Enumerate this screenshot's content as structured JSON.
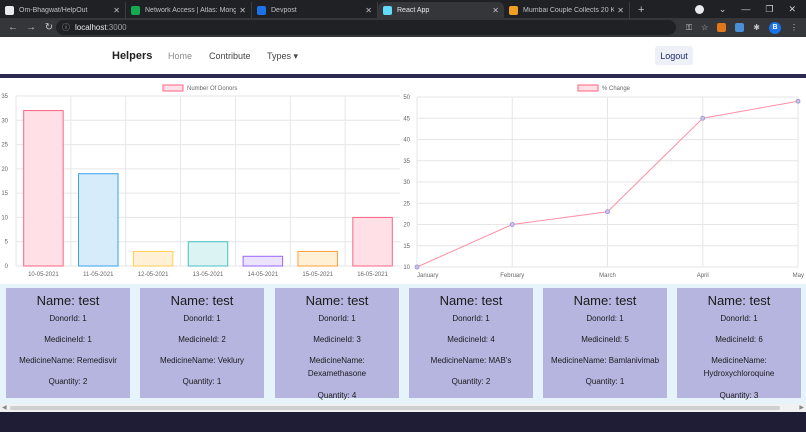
{
  "browser": {
    "tabs": [
      {
        "title": "Om-Bhagwat/HelpOut",
        "favicon_color": "#e8eaed",
        "active": false
      },
      {
        "title": "Network Access | Atlas: MongoD",
        "favicon_color": "#13aa52",
        "active": false
      },
      {
        "title": "Devpost",
        "favicon_color": "#1a73e8",
        "active": false
      },
      {
        "title": "React App",
        "favicon_color": "#61dafb",
        "active": true
      },
      {
        "title": "Mumbai Couple Collects 20 Kg C",
        "favicon_color": "#f0a020",
        "active": false
      }
    ],
    "new_tab": "+",
    "address": {
      "host": "localhost",
      "port": ":3000"
    },
    "profile_initial": "B"
  },
  "navbar": {
    "brand": "Helpers",
    "links": [
      "Home",
      "Contribute",
      "Types ▾"
    ],
    "logout": "Logout"
  },
  "colors": {
    "divider": "#2b2952",
    "card_bg": "#b5b5e0",
    "cards_area": "#e6f3fb"
  },
  "chart_data": [
    {
      "type": "bar",
      "legend": "Number Of Donors",
      "categories": [
        "10-05-2021",
        "11-05-2021",
        "12-05-2021",
        "13-05-2021",
        "14-05-2021",
        "15-05-2021",
        "16-05-2021"
      ],
      "values": [
        32,
        19,
        3,
        5,
        2,
        3,
        10
      ],
      "fills": [
        "#ffe0e6",
        "#d7ecfb",
        "#fff0d6",
        "#dcf3f3",
        "#ebe3ff",
        "#fff0d6",
        "#ffe0e6"
      ],
      "strokes": [
        "#ff6384",
        "#36a2eb",
        "#ffce56",
        "#4bc0c0",
        "#9966ff",
        "#ff9f40",
        "#ff6384"
      ],
      "ylim": [
        0,
        35
      ],
      "yticks": [
        0,
        5,
        10,
        15,
        20,
        25,
        30,
        35
      ],
      "grid": true,
      "legend_position": "top"
    },
    {
      "type": "line",
      "legend": "% Change",
      "x": [
        "January",
        "February",
        "March",
        "April",
        "May"
      ],
      "values": [
        10,
        20,
        23,
        45,
        49
      ],
      "color": "#ff8fa6",
      "ylim": [
        10,
        50
      ],
      "yticks": [
        10,
        15,
        20,
        25,
        30,
        35,
        40,
        45,
        50
      ],
      "grid": true,
      "legend_position": "top"
    }
  ],
  "cards": [
    {
      "name": "Name: test",
      "donor": "DonorId: 1",
      "medicine_id": "MedicineId: 1",
      "medicine_name": [
        "MedicineName: Remedisvir"
      ],
      "quantity": "Quantity: 2"
    },
    {
      "name": "Name: test",
      "donor": "DonorId: 1",
      "medicine_id": "MedicineId: 2",
      "medicine_name": [
        "MedicineName: Veklury"
      ],
      "quantity": "Quantity: 1"
    },
    {
      "name": "Name: test",
      "donor": "DonorId: 1",
      "medicine_id": "MedicineId: 3",
      "medicine_name": [
        "MedicineName:",
        "Dexamethasone"
      ],
      "quantity": "Quantity: 4"
    },
    {
      "name": "Name: test",
      "donor": "DonorId: 1",
      "medicine_id": "MedicineId: 4",
      "medicine_name": [
        "MedicineName: MAB's"
      ],
      "quantity": "Quantity: 2"
    },
    {
      "name": "Name: test",
      "donor": "DonorId: 1",
      "medicine_id": "MedicineId: 5",
      "medicine_name": [
        "MedicineName: Bamlanivimab"
      ],
      "quantity": "Quantity: 1"
    },
    {
      "name": "Name: test",
      "donor": "DonorId: 1",
      "medicine_id": "MedicineId: 6",
      "medicine_name": [
        "MedicineName:",
        "Hydroxychloroquine"
      ],
      "quantity": "Quantity: 3"
    }
  ]
}
